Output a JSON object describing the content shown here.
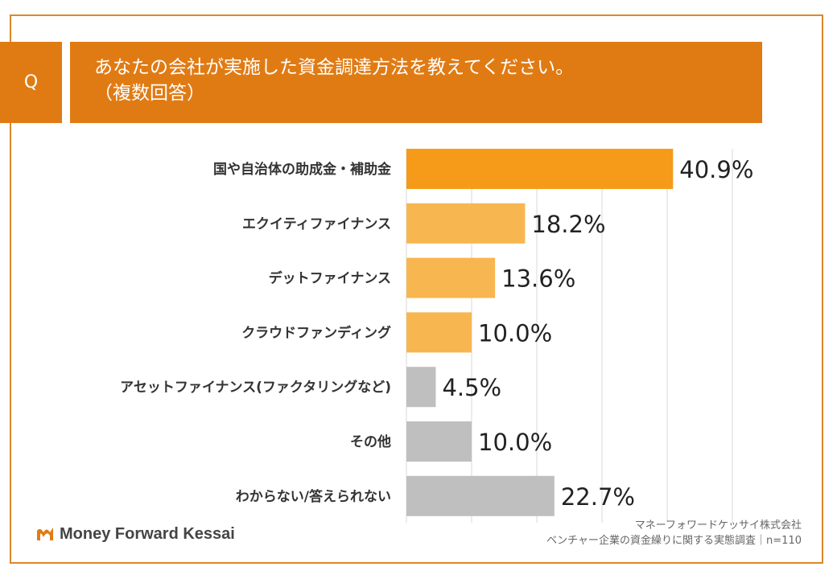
{
  "question": {
    "marker": "Q",
    "line1": "あなたの会社が実施した資金調達方法を教えてください。",
    "line2": "（複数回答）"
  },
  "chart_data": {
    "type": "bar",
    "orientation": "horizontal",
    "title": "あなたの会社が実施した資金調達方法を教えてください。（複数回答）",
    "categories": [
      "国や自治体の助成金・補助金",
      "エクイティファイナンス",
      "デットファイナンス",
      "クラウドファンディング",
      "アセットファイナンス(ファクタリングなど)",
      "その他",
      "わからない/答えられない"
    ],
    "values": [
      40.9,
      18.2,
      13.6,
      10.0,
      4.5,
      10.0,
      22.7
    ],
    "value_labels": [
      "40.9%",
      "18.2%",
      "13.6%",
      "10.0%",
      "4.5%",
      "10.0%",
      "22.7%"
    ],
    "bar_colors": [
      "#f59b19",
      "#f8b650",
      "#f8b650",
      "#f8b650",
      "#bfbfbf",
      "#bfbfbf",
      "#bfbfbf"
    ],
    "xlim": [
      0,
      50
    ],
    "grid_step": 10,
    "grid": true,
    "xlabel": "",
    "ylabel": ""
  },
  "footer": {
    "logo_text": "Money Forward Kessai",
    "source_line1": "マネーフォワードケッサイ株式会社",
    "source_line2": "ベンチャー企業の資金繰りに関する実態調査｜n=110"
  },
  "colors": {
    "accent": "#e07b14",
    "frame": "#d9892a"
  }
}
